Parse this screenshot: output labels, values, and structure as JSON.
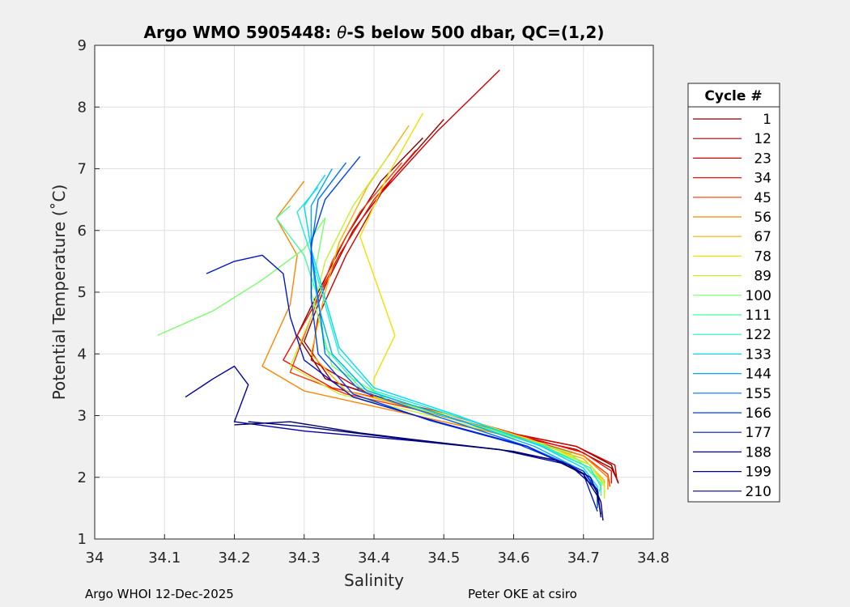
{
  "chart_data": {
    "type": "line",
    "title": "Argo WMO 5905448: θ-S below 500 dbar,  QC=(1,2)",
    "title_parts": {
      "prefix": "Argo WMO 5905448: ",
      "symbol": "θ",
      "suffix": "-S below 500 dbar,  QC=(1,2)"
    },
    "xlabel": "Salinity",
    "ylabel": "Potential Temperature (˚C)",
    "xlim": [
      34,
      34.8
    ],
    "ylim": [
      1,
      9
    ],
    "xticks": [
      "34",
      "34.1",
      "34.2",
      "34.3",
      "34.4",
      "34.5",
      "34.6",
      "34.7",
      "34.8"
    ],
    "yticks": [
      "1",
      "2",
      "3",
      "4",
      "5",
      "6",
      "7",
      "8",
      "9"
    ],
    "grid": true,
    "legend_title": "Cycle #",
    "legend": [
      {
        "label": "1",
        "color": "#800000"
      },
      {
        "label": "12",
        "color": "#a50000"
      },
      {
        "label": "23",
        "color": "#cf0000"
      },
      {
        "label": "34",
        "color": "#f21000"
      },
      {
        "label": "45",
        "color": "#ff3800"
      },
      {
        "label": "56",
        "color": "#ff8400"
      },
      {
        "label": "67",
        "color": "#ffb000"
      },
      {
        "label": "78",
        "color": "#f0e000"
      },
      {
        "label": "89",
        "color": "#c8f030"
      },
      {
        "label": "100",
        "color": "#78ff6a"
      },
      {
        "label": "111",
        "color": "#40ff9c"
      },
      {
        "label": "122",
        "color": "#20f0d0"
      },
      {
        "label": "133",
        "color": "#00d8ff"
      },
      {
        "label": "144",
        "color": "#00a8ff"
      },
      {
        "label": "155",
        "color": "#0070ff"
      },
      {
        "label": "166",
        "color": "#0040ee"
      },
      {
        "label": "177",
        "color": "#0018c8"
      },
      {
        "label": "188",
        "color": "#0000a6"
      },
      {
        "label": "199",
        "color": "#000080"
      },
      {
        "label": "210",
        "color": "#000066"
      }
    ],
    "series": [
      {
        "name": "1",
        "color": "#800000",
        "values": [
          [
            34.47,
            7.5
          ],
          [
            34.41,
            6.8
          ],
          [
            34.36,
            5.9
          ],
          [
            34.32,
            5.0
          ],
          [
            34.29,
            4.3
          ],
          [
            34.33,
            3.6
          ],
          [
            34.43,
            3.2
          ],
          [
            34.58,
            2.75
          ],
          [
            34.69,
            2.5
          ],
          [
            34.74,
            2.2
          ],
          [
            34.75,
            1.9
          ]
        ]
      },
      {
        "name": "12",
        "color": "#a50000",
        "values": [
          [
            34.5,
            7.8
          ],
          [
            34.43,
            6.9
          ],
          [
            34.37,
            6.0
          ],
          [
            34.33,
            5.1
          ],
          [
            34.3,
            4.2
          ],
          [
            34.34,
            3.55
          ],
          [
            34.45,
            3.15
          ],
          [
            34.59,
            2.7
          ],
          [
            34.69,
            2.45
          ],
          [
            34.74,
            2.15
          ],
          [
            34.75,
            1.92
          ]
        ]
      },
      {
        "name": "23",
        "color": "#cf0000",
        "values": [
          [
            34.58,
            8.6
          ],
          [
            34.49,
            7.6
          ],
          [
            34.41,
            6.6
          ],
          [
            34.36,
            5.6
          ],
          [
            34.32,
            4.6
          ],
          [
            34.31,
            3.9
          ],
          [
            34.4,
            3.3
          ],
          [
            34.56,
            2.8
          ],
          [
            34.69,
            2.5
          ],
          [
            34.745,
            2.2
          ],
          [
            34.748,
            1.95
          ]
        ]
      },
      {
        "name": "34",
        "color": "#f21000",
        "values": [
          [
            34.46,
            7.3
          ],
          [
            34.4,
            6.5
          ],
          [
            34.35,
            5.6
          ],
          [
            34.31,
            4.7
          ],
          [
            34.27,
            3.9
          ],
          [
            34.34,
            3.45
          ],
          [
            34.48,
            3.1
          ],
          [
            34.61,
            2.68
          ],
          [
            34.7,
            2.4
          ],
          [
            34.74,
            2.1
          ],
          [
            34.74,
            1.9
          ]
        ]
      },
      {
        "name": "45",
        "color": "#ff3800",
        "values": [
          [
            34.44,
            7.1
          ],
          [
            34.38,
            6.3
          ],
          [
            34.34,
            5.5
          ],
          [
            34.31,
            4.6
          ],
          [
            34.28,
            3.7
          ],
          [
            34.36,
            3.35
          ],
          [
            34.5,
            3.0
          ],
          [
            34.62,
            2.62
          ],
          [
            34.7,
            2.35
          ],
          [
            34.735,
            2.05
          ],
          [
            34.738,
            1.85
          ]
        ]
      },
      {
        "name": "56",
        "color": "#ff8400",
        "values": [
          [
            34.3,
            6.8
          ],
          [
            34.26,
            6.2
          ],
          [
            34.29,
            5.6
          ],
          [
            34.28,
            4.8
          ],
          [
            34.24,
            3.8
          ],
          [
            34.3,
            3.4
          ],
          [
            34.44,
            3.05
          ],
          [
            34.6,
            2.65
          ],
          [
            34.7,
            2.35
          ],
          [
            34.735,
            2.0
          ],
          [
            34.735,
            1.8
          ]
        ]
      },
      {
        "name": "67",
        "color": "#ffb000",
        "values": [
          [
            34.45,
            7.7
          ],
          [
            34.39,
            6.7
          ],
          [
            34.35,
            5.8
          ],
          [
            34.33,
            5.0
          ],
          [
            34.31,
            4.0
          ],
          [
            34.36,
            3.4
          ],
          [
            34.5,
            3.0
          ],
          [
            34.62,
            2.6
          ],
          [
            34.7,
            2.3
          ],
          [
            34.73,
            1.95
          ],
          [
            34.73,
            1.75
          ]
        ]
      },
      {
        "name": "78",
        "color": "#f0e000",
        "values": [
          [
            34.47,
            7.9
          ],
          [
            34.42,
            6.9
          ],
          [
            34.38,
            5.9
          ],
          [
            34.43,
            4.3
          ],
          [
            34.4,
            3.6
          ],
          [
            34.4,
            3.3
          ],
          [
            34.53,
            2.95
          ],
          [
            34.64,
            2.55
          ],
          [
            34.71,
            2.2
          ],
          [
            34.73,
            1.9
          ],
          [
            34.73,
            1.7
          ]
        ]
      },
      {
        "name": "89",
        "color": "#c8f030",
        "values": [
          [
            34.42,
            7.2
          ],
          [
            34.37,
            6.4
          ],
          [
            34.33,
            5.5
          ],
          [
            34.31,
            4.6
          ],
          [
            34.28,
            3.8
          ],
          [
            34.35,
            3.35
          ],
          [
            34.5,
            2.95
          ],
          [
            34.63,
            2.55
          ],
          [
            34.71,
            2.2
          ],
          [
            34.73,
            1.85
          ],
          [
            34.73,
            1.65
          ]
        ]
      },
      {
        "name": "100",
        "color": "#78ff6a",
        "values": [
          [
            34.09,
            4.3
          ],
          [
            34.17,
            4.7
          ],
          [
            34.24,
            5.2
          ],
          [
            34.3,
            5.7
          ],
          [
            34.33,
            6.2
          ],
          [
            34.31,
            5.0
          ],
          [
            34.34,
            3.8
          ],
          [
            34.42,
            3.25
          ],
          [
            34.56,
            2.8
          ],
          [
            34.68,
            2.4
          ],
          [
            34.73,
            1.9
          ]
        ]
      },
      {
        "name": "111",
        "color": "#40ff9c",
        "values": [
          [
            34.28,
            6.4
          ],
          [
            34.26,
            6.2
          ],
          [
            34.3,
            5.6
          ],
          [
            34.32,
            4.9
          ],
          [
            34.33,
            4.1
          ],
          [
            34.38,
            3.45
          ],
          [
            34.5,
            3.0
          ],
          [
            34.63,
            2.55
          ],
          [
            34.7,
            2.2
          ],
          [
            34.725,
            1.9
          ],
          [
            34.725,
            1.7
          ]
        ]
      },
      {
        "name": "122",
        "color": "#20f0d0",
        "values": [
          [
            34.32,
            6.7
          ],
          [
            34.29,
            6.3
          ],
          [
            34.31,
            5.6
          ],
          [
            34.33,
            4.8
          ],
          [
            34.35,
            4.0
          ],
          [
            34.4,
            3.4
          ],
          [
            34.52,
            2.98
          ],
          [
            34.64,
            2.52
          ],
          [
            34.71,
            2.15
          ],
          [
            34.725,
            1.85
          ],
          [
            34.72,
            1.7
          ]
        ]
      },
      {
        "name": "133",
        "color": "#00d8ff",
        "values": [
          [
            34.33,
            6.9
          ],
          [
            34.3,
            6.4
          ],
          [
            34.31,
            5.7
          ],
          [
            34.33,
            4.9
          ],
          [
            34.35,
            4.1
          ],
          [
            34.4,
            3.45
          ],
          [
            34.52,
            3.0
          ],
          [
            34.64,
            2.5
          ],
          [
            34.7,
            2.15
          ],
          [
            34.72,
            1.85
          ],
          [
            34.72,
            1.65
          ]
        ]
      },
      {
        "name": "144",
        "color": "#00a8ff",
        "values": [
          [
            34.34,
            7.0
          ],
          [
            34.31,
            6.4
          ],
          [
            34.31,
            5.6
          ],
          [
            34.32,
            4.8
          ],
          [
            34.34,
            4.0
          ],
          [
            34.39,
            3.4
          ],
          [
            34.51,
            2.97
          ],
          [
            34.63,
            2.5
          ],
          [
            34.7,
            2.1
          ],
          [
            34.72,
            1.8
          ],
          [
            34.72,
            1.6
          ]
        ]
      },
      {
        "name": "155",
        "color": "#0070ff",
        "values": [
          [
            34.36,
            7.1
          ],
          [
            34.32,
            6.5
          ],
          [
            34.31,
            5.7
          ],
          [
            34.32,
            4.9
          ],
          [
            34.33,
            4.0
          ],
          [
            34.38,
            3.4
          ],
          [
            34.5,
            2.95
          ],
          [
            34.62,
            2.5
          ],
          [
            34.7,
            2.1
          ],
          [
            34.72,
            1.8
          ],
          [
            34.72,
            1.55
          ]
        ]
      },
      {
        "name": "166",
        "color": "#0040ee",
        "values": [
          [
            34.38,
            7.2
          ],
          [
            34.33,
            6.5
          ],
          [
            34.31,
            5.8
          ],
          [
            34.31,
            4.9
          ],
          [
            34.32,
            4.0
          ],
          [
            34.37,
            3.35
          ],
          [
            34.48,
            2.92
          ],
          [
            34.61,
            2.52
          ],
          [
            34.7,
            2.1
          ],
          [
            34.72,
            1.75
          ],
          [
            34.72,
            1.5
          ]
        ]
      },
      {
        "name": "177",
        "color": "#0018c8",
        "values": [
          [
            34.16,
            5.3
          ],
          [
            34.2,
            5.5
          ],
          [
            34.24,
            5.6
          ],
          [
            34.27,
            5.3
          ],
          [
            34.28,
            4.6
          ],
          [
            34.3,
            3.9
          ],
          [
            34.37,
            3.3
          ],
          [
            34.49,
            2.9
          ],
          [
            34.62,
            2.5
          ],
          [
            34.7,
            2.05
          ],
          [
            34.72,
            1.45
          ]
        ]
      },
      {
        "name": "188",
        "color": "#0000a6",
        "values": [
          [
            34.13,
            3.3
          ],
          [
            34.17,
            3.6
          ],
          [
            34.2,
            3.8
          ],
          [
            34.22,
            3.5
          ],
          [
            34.2,
            2.9
          ],
          [
            34.3,
            2.75
          ],
          [
            34.45,
            2.6
          ],
          [
            34.58,
            2.45
          ],
          [
            34.68,
            2.2
          ],
          [
            34.72,
            1.8
          ],
          [
            34.725,
            1.35
          ]
        ]
      },
      {
        "name": "199",
        "color": "#000080",
        "values": [
          [
            34.22,
            2.9
          ],
          [
            34.3,
            2.82
          ],
          [
            34.4,
            2.68
          ],
          [
            34.5,
            2.55
          ],
          [
            34.6,
            2.42
          ],
          [
            34.67,
            2.25
          ],
          [
            34.71,
            2.0
          ],
          [
            34.725,
            1.6
          ],
          [
            34.728,
            1.3
          ]
        ]
      },
      {
        "name": "210",
        "color": "#000066",
        "values": [
          [
            34.2,
            2.85
          ],
          [
            34.28,
            2.9
          ],
          [
            34.38,
            2.72
          ],
          [
            34.48,
            2.58
          ],
          [
            34.58,
            2.45
          ],
          [
            34.66,
            2.28
          ],
          [
            34.7,
            2.05
          ],
          [
            34.72,
            1.7
          ],
          [
            34.725,
            1.4
          ]
        ]
      }
    ]
  },
  "footer": {
    "left": "Argo WHOI 12-Dec-2025",
    "right": "Peter OKE at csiro"
  }
}
